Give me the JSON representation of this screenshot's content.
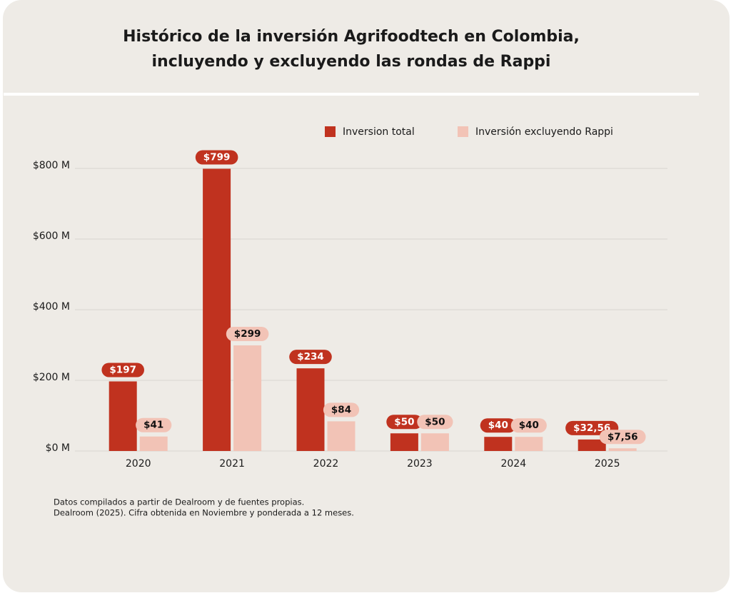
{
  "chart_data": {
    "type": "bar",
    "title": [
      "Histórico de la inversión Agrifoodtech en Colombia,",
      "incluyendo y excluyendo las rondas de Rappi"
    ],
    "categories": [
      "2020",
      "2021",
      "2022",
      "2023",
      "2024",
      "2025"
    ],
    "series": [
      {
        "name": "Inversion total",
        "color": "#c0321f",
        "label_text_color": "#ffffff",
        "values": [
          197,
          799,
          234,
          50,
          40,
          32.56
        ],
        "value_labels": [
          "$197",
          "$799",
          "$234",
          "$50",
          "$40",
          "$32,56"
        ]
      },
      {
        "name": "Inversión excluyendo Rappi",
        "color": "#f2c3b6",
        "label_text_color": "#111111",
        "values": [
          41,
          299,
          84,
          50,
          40,
          7.56
        ],
        "value_labels": [
          "$41",
          "$299",
          "$84",
          "$50",
          "$40",
          "$7,56"
        ]
      }
    ],
    "ylim": [
      0,
      800
    ],
    "yticks": [
      {
        "value": 0,
        "label": "$0 M"
      },
      {
        "value": 200,
        "label": "$200 M"
      },
      {
        "value": 400,
        "label": "$400 M"
      },
      {
        "value": 600,
        "label": "$600 M"
      },
      {
        "value": 800,
        "label": "$800 M"
      }
    ],
    "grid": true,
    "notes": [
      "Datos compilados a partir de Dealroom y de fuentes propias.",
      "Dealroom (2025). Cifra obtenida en Noviembre y ponderada a 12 meses."
    ]
  }
}
